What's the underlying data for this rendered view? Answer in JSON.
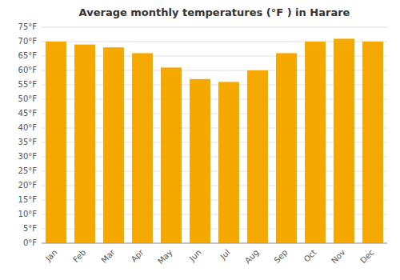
{
  "chart_data": {
    "type": "bar",
    "title": "Average monthly temperatures (°F ) in Harare",
    "categories": [
      "Jan",
      "Feb",
      "Mar",
      "Apr",
      "May",
      "Jun",
      "Jul",
      "Aug",
      "Sep",
      "Oct",
      "Nov",
      "Dec"
    ],
    "values": [
      70,
      69,
      68,
      66,
      61,
      57,
      56,
      60,
      66,
      70,
      71,
      70
    ],
    "color": "#F5A800",
    "ylim": [
      0,
      75
    ],
    "yticks": [
      {
        "value": 0,
        "label": "0°F"
      },
      {
        "value": 5,
        "label": "5°F"
      },
      {
        "value": 10,
        "label": "10°F"
      },
      {
        "value": 15,
        "label": "15°F"
      },
      {
        "value": 20,
        "label": "20°F"
      },
      {
        "value": 25,
        "label": "25°F"
      },
      {
        "value": 30,
        "label": "30°F"
      },
      {
        "value": 35,
        "label": "35°F"
      },
      {
        "value": 40,
        "label": "40°F"
      },
      {
        "value": 45,
        "label": "45°F"
      },
      {
        "value": 50,
        "label": "50°F"
      },
      {
        "value": 55,
        "label": "55°F"
      },
      {
        "value": 60,
        "label": "60°F"
      },
      {
        "value": 65,
        "label": "65°F"
      },
      {
        "value": 70,
        "label": "70°F"
      },
      {
        "value": 75,
        "label": "75°F"
      }
    ],
    "grid": true
  }
}
